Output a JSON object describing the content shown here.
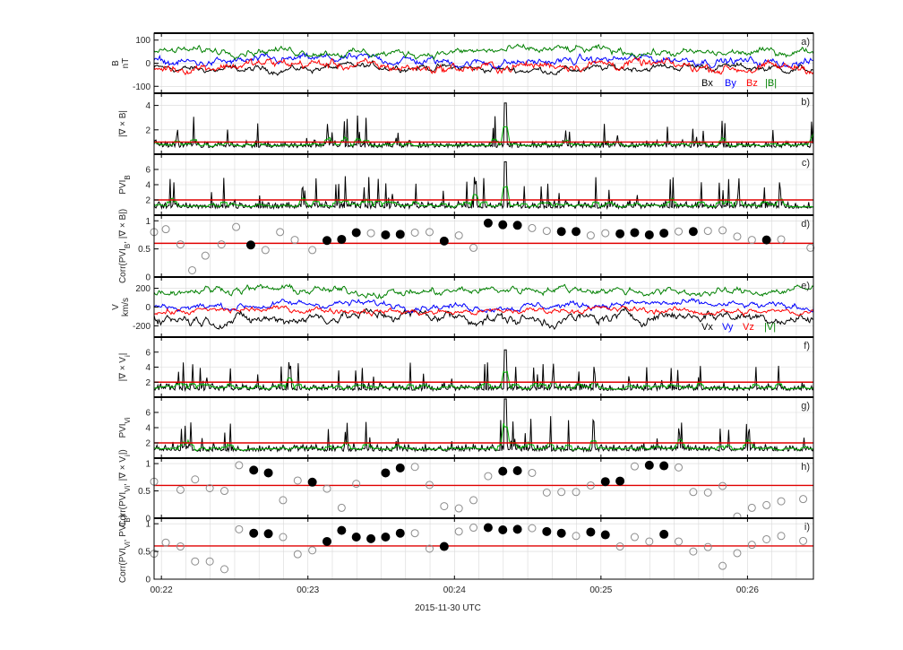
{
  "chart_data": {
    "type": "line",
    "title": "",
    "xlabel": "2015-11-30 UTC",
    "x_ticks": [
      "00:22",
      "00:23",
      "00:24",
      "00:25",
      "00:26"
    ],
    "x_range_minutes": [
      21.95,
      26.45
    ],
    "panels": [
      {
        "id": "a",
        "label": "a)",
        "kind": "multiline",
        "ylabel": [
          "B",
          "nT"
        ],
        "ylim": [
          -130,
          130
        ],
        "yticks": [
          "100",
          "0",
          "-100"
        ],
        "ytick_values": [
          100,
          0,
          -100
        ],
        "series": [
          {
            "name": "Bx",
            "color": "#000000",
            "mean": -22,
            "amp": 18
          },
          {
            "name": "By",
            "color": "#0000ff",
            "mean": 10,
            "amp": 22
          },
          {
            "name": "Bz",
            "color": "#ff0000",
            "mean": -12,
            "amp": 25
          },
          {
            "name": "|B|",
            "color": "#008000",
            "mean": 50,
            "amp": 20
          }
        ],
        "legend": [
          "Bx",
          "By",
          "Bz",
          "|B|"
        ]
      },
      {
        "id": "b",
        "label": "b)",
        "kind": "spiky",
        "ylabel": [
          "|∇ × B|"
        ],
        "ylim": [
          0,
          5
        ],
        "yticks": [
          "4",
          "2"
        ],
        "ytick_values": [
          4,
          2
        ],
        "threshold": 1.0,
        "series": [
          {
            "name": "|∇ × B| (raw)",
            "color": "#000000"
          },
          {
            "name": "|∇ × B| (smoothed)",
            "color": "#00b000"
          }
        ],
        "peak": 4.2
      },
      {
        "id": "c",
        "label": "c)",
        "kind": "spiky",
        "ylabel": [
          "PVI",
          "B"
        ],
        "ylim": [
          0,
          8
        ],
        "yticks": [
          "6",
          "4",
          "2"
        ],
        "ytick_values": [
          6,
          4,
          2
        ],
        "threshold": 2.0,
        "series": [
          {
            "name": "PVI_B",
            "color": "#000000"
          },
          {
            "name": "PVI_B (smoothed)",
            "color": "#00b000"
          }
        ],
        "peak": 7.0
      },
      {
        "id": "d",
        "label": "d)",
        "kind": "scatter",
        "ylabel": [
          "Corr(PVI",
          "B",
          ", |∇ × B|)"
        ],
        "ylim": [
          0,
          1.1
        ],
        "yticks": [
          "1",
          "0.5",
          "0"
        ],
        "ytick_values": [
          1,
          0.5,
          0
        ],
        "threshold": 0.6,
        "points": [
          {
            "t": 21.95,
            "v": 0.8,
            "filled": false
          },
          {
            "t": 22.03,
            "v": 0.85,
            "filled": false
          },
          {
            "t": 22.13,
            "v": 0.58,
            "filled": false
          },
          {
            "t": 22.21,
            "v": 0.12,
            "filled": false
          },
          {
            "t": 22.3,
            "v": 0.38,
            "filled": false
          },
          {
            "t": 22.41,
            "v": 0.58,
            "filled": false
          },
          {
            "t": 22.51,
            "v": 0.89,
            "filled": false
          },
          {
            "t": 22.61,
            "v": 0.57,
            "filled": true
          },
          {
            "t": 22.71,
            "v": 0.48,
            "filled": false
          },
          {
            "t": 22.81,
            "v": 0.8,
            "filled": false
          },
          {
            "t": 22.91,
            "v": 0.66,
            "filled": false
          },
          {
            "t": 23.03,
            "v": 0.48,
            "filled": false
          },
          {
            "t": 23.13,
            "v": 0.65,
            "filled": true
          },
          {
            "t": 23.23,
            "v": 0.67,
            "filled": true
          },
          {
            "t": 23.33,
            "v": 0.79,
            "filled": true
          },
          {
            "t": 23.43,
            "v": 0.78,
            "filled": false
          },
          {
            "t": 23.53,
            "v": 0.75,
            "filled": true
          },
          {
            "t": 23.63,
            "v": 0.76,
            "filled": true
          },
          {
            "t": 23.73,
            "v": 0.79,
            "filled": false
          },
          {
            "t": 23.83,
            "v": 0.8,
            "filled": false
          },
          {
            "t": 23.93,
            "v": 0.64,
            "filled": true
          },
          {
            "t": 24.03,
            "v": 0.74,
            "filled": false
          },
          {
            "t": 24.13,
            "v": 0.52,
            "filled": false
          },
          {
            "t": 24.23,
            "v": 0.96,
            "filled": true
          },
          {
            "t": 24.33,
            "v": 0.93,
            "filled": true
          },
          {
            "t": 24.43,
            "v": 0.92,
            "filled": true
          },
          {
            "t": 24.53,
            "v": 0.87,
            "filled": false
          },
          {
            "t": 24.63,
            "v": 0.82,
            "filled": false
          },
          {
            "t": 24.73,
            "v": 0.81,
            "filled": true
          },
          {
            "t": 24.83,
            "v": 0.81,
            "filled": true
          },
          {
            "t": 24.93,
            "v": 0.74,
            "filled": false
          },
          {
            "t": 25.03,
            "v": 0.78,
            "filled": false
          },
          {
            "t": 25.13,
            "v": 0.77,
            "filled": true
          },
          {
            "t": 25.23,
            "v": 0.79,
            "filled": true
          },
          {
            "t": 25.33,
            "v": 0.75,
            "filled": true
          },
          {
            "t": 25.43,
            "v": 0.78,
            "filled": true
          },
          {
            "t": 25.53,
            "v": 0.81,
            "filled": false
          },
          {
            "t": 25.63,
            "v": 0.81,
            "filled": true
          },
          {
            "t": 25.73,
            "v": 0.82,
            "filled": false
          },
          {
            "t": 25.83,
            "v": 0.83,
            "filled": false
          },
          {
            "t": 25.93,
            "v": 0.72,
            "filled": false
          },
          {
            "t": 26.03,
            "v": 0.66,
            "filled": false
          },
          {
            "t": 26.13,
            "v": 0.66,
            "filled": true
          },
          {
            "t": 26.23,
            "v": 0.67,
            "filled": false
          },
          {
            "t": 26.43,
            "v": 0.52,
            "filled": false
          }
        ]
      },
      {
        "id": "e",
        "label": "e)",
        "kind": "multiline",
        "ylabel": [
          "V",
          "km/s"
        ],
        "ylim": [
          -320,
          320
        ],
        "yticks": [
          "200",
          "0",
          "-200"
        ],
        "ytick_values": [
          200,
          0,
          -200
        ],
        "series": [
          {
            "name": "Vx",
            "color": "#000000",
            "mean": -110,
            "amp": 70
          },
          {
            "name": "Vy",
            "color": "#0000ff",
            "mean": 20,
            "amp": 45
          },
          {
            "name": "Vz",
            "color": "#ff0000",
            "mean": -40,
            "amp": 40
          },
          {
            "name": "|V|",
            "color": "#008000",
            "mean": 175,
            "amp": 50
          }
        ],
        "legend": [
          "Vx",
          "Vy",
          "Vz",
          "|V|"
        ]
      },
      {
        "id": "f",
        "label": "f)",
        "kind": "spiky",
        "ylabel": [
          "|∇ × V",
          "i",
          "|"
        ],
        "ylim": [
          0,
          8
        ],
        "yticks": [
          "6",
          "4",
          "2"
        ],
        "ytick_values": [
          6,
          4,
          2
        ],
        "threshold": 2.0,
        "series": [
          {
            "name": "|∇ × Vi| (raw)",
            "color": "#000000"
          },
          {
            "name": "|∇ × Vi| (smoothed)",
            "color": "#00b000"
          }
        ],
        "peak": 6.3
      },
      {
        "id": "g",
        "label": "g)",
        "kind": "spiky",
        "ylabel": [
          "PVI",
          "V",
          "i"
        ],
        "ylim": [
          0,
          8
        ],
        "yticks": [
          "6",
          "4",
          "2"
        ],
        "ytick_values": [
          6,
          4,
          2
        ],
        "threshold": 2.0,
        "series": [
          {
            "name": "PVI_Vi",
            "color": "#000000"
          },
          {
            "name": "PVI_Vi (smoothed)",
            "color": "#00b000"
          }
        ],
        "peak": 7.8
      },
      {
        "id": "h",
        "label": "h)",
        "kind": "scatter",
        "ylabel": [
          "Corr(PVI",
          "V",
          "i",
          ", |∇ × V",
          "i",
          "|)"
        ],
        "ylim": [
          0,
          1.1
        ],
        "yticks": [
          "1",
          "0.5",
          "0"
        ],
        "ytick_values": [
          1,
          0.5,
          0
        ],
        "threshold": 0.6,
        "points": [
          {
            "t": 21.95,
            "v": 0.67,
            "filled": false
          },
          {
            "t": 22.13,
            "v": 0.52,
            "filled": false
          },
          {
            "t": 22.23,
            "v": 0.71,
            "filled": false
          },
          {
            "t": 22.33,
            "v": 0.55,
            "filled": false
          },
          {
            "t": 22.43,
            "v": 0.5,
            "filled": false
          },
          {
            "t": 22.53,
            "v": 0.97,
            "filled": false
          },
          {
            "t": 22.63,
            "v": 0.88,
            "filled": true
          },
          {
            "t": 22.73,
            "v": 0.83,
            "filled": true
          },
          {
            "t": 22.83,
            "v": 0.33,
            "filled": false
          },
          {
            "t": 22.93,
            "v": 0.69,
            "filled": false
          },
          {
            "t": 23.03,
            "v": 0.66,
            "filled": true
          },
          {
            "t": 23.13,
            "v": 0.54,
            "filled": false
          },
          {
            "t": 23.23,
            "v": 0.19,
            "filled": false
          },
          {
            "t": 23.33,
            "v": 0.63,
            "filled": false
          },
          {
            "t": 23.53,
            "v": 0.83,
            "filled": true
          },
          {
            "t": 23.63,
            "v": 0.92,
            "filled": true
          },
          {
            "t": 23.73,
            "v": 0.94,
            "filled": false
          },
          {
            "t": 23.83,
            "v": 0.61,
            "filled": false
          },
          {
            "t": 23.93,
            "v": 0.22,
            "filled": false
          },
          {
            "t": 24.03,
            "v": 0.18,
            "filled": false
          },
          {
            "t": 24.13,
            "v": 0.33,
            "filled": false
          },
          {
            "t": 24.23,
            "v": 0.77,
            "filled": false
          },
          {
            "t": 24.33,
            "v": 0.86,
            "filled": true
          },
          {
            "t": 24.43,
            "v": 0.87,
            "filled": true
          },
          {
            "t": 24.53,
            "v": 0.83,
            "filled": false
          },
          {
            "t": 24.63,
            "v": 0.47,
            "filled": false
          },
          {
            "t": 24.73,
            "v": 0.48,
            "filled": false
          },
          {
            "t": 24.83,
            "v": 0.48,
            "filled": false
          },
          {
            "t": 24.93,
            "v": 0.6,
            "filled": false
          },
          {
            "t": 25.03,
            "v": 0.67,
            "filled": true
          },
          {
            "t": 25.13,
            "v": 0.68,
            "filled": true
          },
          {
            "t": 25.23,
            "v": 0.95,
            "filled": false
          },
          {
            "t": 25.33,
            "v": 0.97,
            "filled": true
          },
          {
            "t": 25.43,
            "v": 0.96,
            "filled": true
          },
          {
            "t": 25.53,
            "v": 0.93,
            "filled": false
          },
          {
            "t": 25.63,
            "v": 0.48,
            "filled": false
          },
          {
            "t": 25.73,
            "v": 0.47,
            "filled": false
          },
          {
            "t": 25.83,
            "v": 0.59,
            "filled": false
          },
          {
            "t": 25.93,
            "v": 0.03,
            "filled": false
          },
          {
            "t": 26.03,
            "v": 0.19,
            "filled": false
          },
          {
            "t": 26.13,
            "v": 0.24,
            "filled": false
          },
          {
            "t": 26.23,
            "v": 0.31,
            "filled": false
          },
          {
            "t": 26.38,
            "v": 0.35,
            "filled": false
          }
        ]
      },
      {
        "id": "i",
        "label": "i)",
        "kind": "scatter",
        "ylabel": [
          "Corr(PVI",
          "V",
          "i",
          ", PVI",
          "B",
          ")"
        ],
        "ylim": [
          0,
          1.1
        ],
        "yticks": [
          "1",
          "0.5",
          "0"
        ],
        "ytick_values": [
          1,
          0.5,
          0
        ],
        "threshold": 0.6,
        "points": [
          {
            "t": 21.95,
            "v": 0.46,
            "filled": false
          },
          {
            "t": 22.03,
            "v": 0.66,
            "filled": false
          },
          {
            "t": 22.13,
            "v": 0.59,
            "filled": false
          },
          {
            "t": 22.23,
            "v": 0.32,
            "filled": false
          },
          {
            "t": 22.33,
            "v": 0.32,
            "filled": false
          },
          {
            "t": 22.43,
            "v": 0.18,
            "filled": false
          },
          {
            "t": 22.53,
            "v": 0.9,
            "filled": false
          },
          {
            "t": 22.63,
            "v": 0.83,
            "filled": true
          },
          {
            "t": 22.73,
            "v": 0.82,
            "filled": true
          },
          {
            "t": 22.83,
            "v": 0.76,
            "filled": false
          },
          {
            "t": 22.93,
            "v": 0.45,
            "filled": false
          },
          {
            "t": 23.03,
            "v": 0.52,
            "filled": false
          },
          {
            "t": 23.13,
            "v": 0.68,
            "filled": true
          },
          {
            "t": 23.23,
            "v": 0.88,
            "filled": true
          },
          {
            "t": 23.33,
            "v": 0.76,
            "filled": true
          },
          {
            "t": 23.43,
            "v": 0.73,
            "filled": true
          },
          {
            "t": 23.53,
            "v": 0.76,
            "filled": true
          },
          {
            "t": 23.63,
            "v": 0.83,
            "filled": true
          },
          {
            "t": 23.73,
            "v": 0.83,
            "filled": false
          },
          {
            "t": 23.83,
            "v": 0.55,
            "filled": false
          },
          {
            "t": 23.93,
            "v": 0.59,
            "filled": true
          },
          {
            "t": 24.03,
            "v": 0.86,
            "filled": false
          },
          {
            "t": 24.13,
            "v": 0.93,
            "filled": false
          },
          {
            "t": 24.23,
            "v": 0.93,
            "filled": true
          },
          {
            "t": 24.33,
            "v": 0.89,
            "filled": true
          },
          {
            "t": 24.43,
            "v": 0.9,
            "filled": true
          },
          {
            "t": 24.53,
            "v": 0.92,
            "filled": false
          },
          {
            "t": 24.63,
            "v": 0.86,
            "filled": true
          },
          {
            "t": 24.73,
            "v": 0.83,
            "filled": true
          },
          {
            "t": 24.83,
            "v": 0.78,
            "filled": false
          },
          {
            "t": 24.93,
            "v": 0.85,
            "filled": true
          },
          {
            "t": 25.03,
            "v": 0.8,
            "filled": true
          },
          {
            "t": 25.13,
            "v": 0.59,
            "filled": false
          },
          {
            "t": 25.23,
            "v": 0.76,
            "filled": false
          },
          {
            "t": 25.33,
            "v": 0.68,
            "filled": false
          },
          {
            "t": 25.43,
            "v": 0.81,
            "filled": true
          },
          {
            "t": 25.53,
            "v": 0.68,
            "filled": false
          },
          {
            "t": 25.63,
            "v": 0.5,
            "filled": false
          },
          {
            "t": 25.73,
            "v": 0.58,
            "filled": false
          },
          {
            "t": 25.83,
            "v": 0.24,
            "filled": false
          },
          {
            "t": 25.93,
            "v": 0.47,
            "filled": false
          },
          {
            "t": 26.03,
            "v": 0.62,
            "filled": false
          },
          {
            "t": 26.13,
            "v": 0.72,
            "filled": false
          },
          {
            "t": 26.23,
            "v": 0.78,
            "filled": false
          },
          {
            "t": 26.38,
            "v": 0.69,
            "filled": false
          }
        ]
      }
    ],
    "colors": {
      "threshold": "#e00000",
      "grid": "#d8d8d8",
      "axis": "#000000",
      "open_marker": "#8c8c8c",
      "filled_marker": "#000000",
      "smoothed": "#00b000"
    }
  }
}
